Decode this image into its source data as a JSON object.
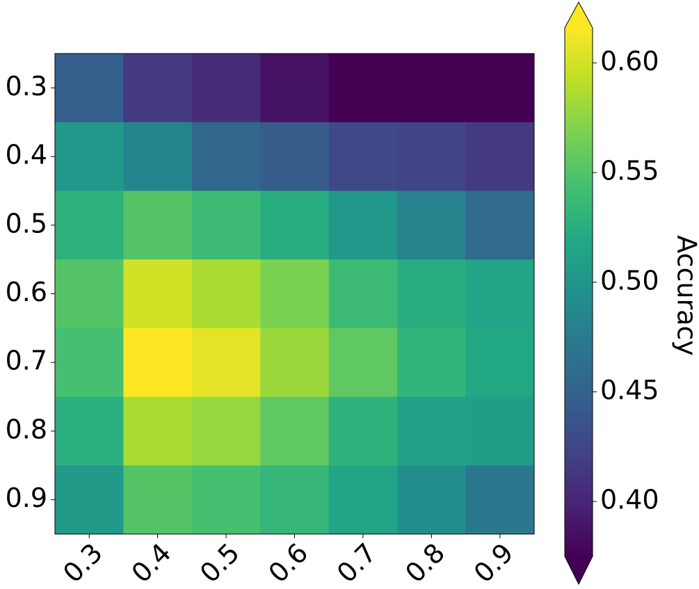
{
  "chart_data": {
    "type": "heatmap",
    "colormap": "viridis",
    "x_categories": [
      "0.3",
      "0.4",
      "0.5",
      "0.6",
      "0.7",
      "0.8",
      "0.9"
    ],
    "y_categories": [
      "0.3",
      "0.4",
      "0.5",
      "0.6",
      "0.7",
      "0.8",
      "0.9"
    ],
    "values": [
      [
        0.447,
        0.416,
        0.406,
        0.387,
        0.375,
        0.374,
        0.373
      ],
      [
        0.503,
        0.484,
        0.455,
        0.445,
        0.428,
        0.423,
        0.416
      ],
      [
        0.529,
        0.551,
        0.539,
        0.524,
        0.503,
        0.481,
        0.459
      ],
      [
        0.551,
        0.599,
        0.585,
        0.568,
        0.539,
        0.524,
        0.515
      ],
      [
        0.544,
        0.616,
        0.606,
        0.58,
        0.556,
        0.532,
        0.52
      ],
      [
        0.527,
        0.585,
        0.578,
        0.556,
        0.529,
        0.512,
        0.508
      ],
      [
        0.505,
        0.551,
        0.544,
        0.534,
        0.515,
        0.493,
        0.471
      ]
    ],
    "colorbar": {
      "label": "Accuracy",
      "lim": [
        0.375,
        0.616
      ],
      "extend": "both",
      "ticks": [
        {
          "value": 0.4,
          "label": "0.40"
        },
        {
          "value": 0.45,
          "label": "0.45"
        },
        {
          "value": 0.5,
          "label": "0.50"
        },
        {
          "value": 0.55,
          "label": "0.55"
        },
        {
          "value": 0.6,
          "label": "0.60"
        }
      ]
    }
  }
}
